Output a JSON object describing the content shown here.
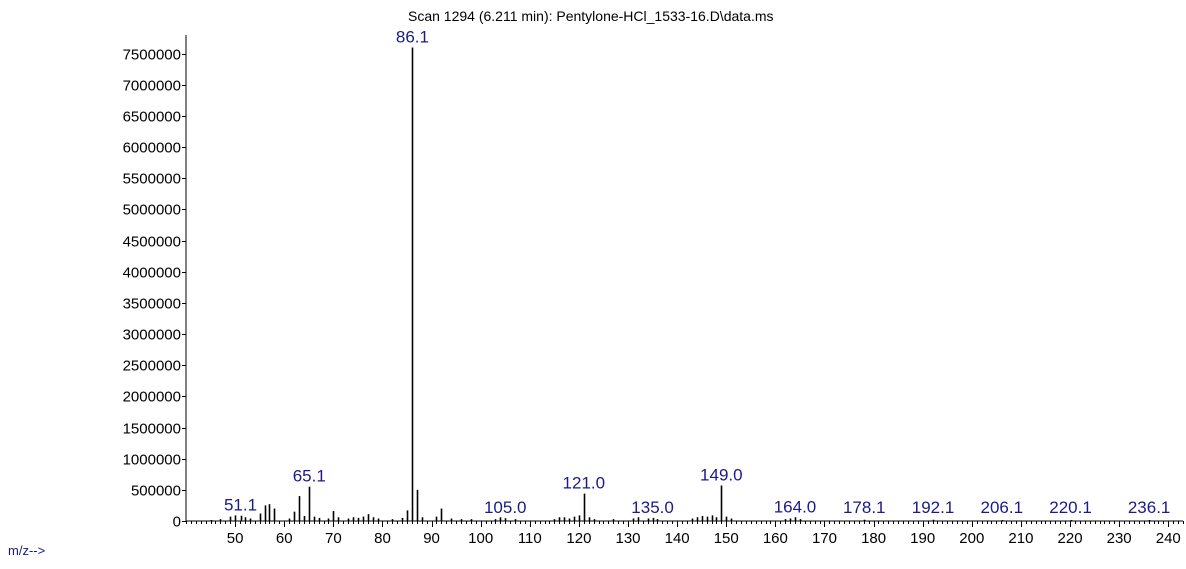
{
  "chart_data": {
    "type": "bar",
    "title": "Scan 1294 (6.211 min): Pentylone-HCl_1533-16.D\\data.ms",
    "xlabel": "m/z-->",
    "ylabel": "",
    "xlim": [
      40,
      243
    ],
    "ylim": [
      0,
      7800000
    ],
    "x_ticks": [
      50,
      60,
      70,
      80,
      90,
      100,
      110,
      120,
      130,
      140,
      150,
      160,
      170,
      180,
      190,
      200,
      210,
      220,
      230,
      240
    ],
    "y_ticks": [
      0,
      500000,
      1000000,
      1500000,
      2000000,
      2500000,
      3000000,
      3500000,
      4000000,
      4500000,
      5000000,
      5500000,
      6000000,
      6500000,
      7000000,
      7500000
    ],
    "grid": false,
    "bar_color": "#000000",
    "label_color": "#1a1a8a",
    "series": [
      {
        "x": [
          45,
          47,
          49,
          50,
          51.1,
          52,
          53,
          55,
          56,
          57,
          58,
          61,
          62,
          63,
          64,
          65.1,
          66,
          67,
          69,
          70,
          71,
          73,
          74,
          75,
          76,
          77,
          78,
          79,
          82,
          84,
          85,
          86.1,
          87,
          88,
          91,
          92,
          94,
          96,
          98,
          103,
          104,
          105.0,
          107,
          115,
          116,
          117,
          118,
          119,
          120,
          121.0,
          122,
          123,
          127,
          131,
          132,
          134,
          135.0,
          136,
          143,
          144,
          145,
          146,
          147,
          148,
          149.0,
          150,
          151,
          162,
          163,
          164.0,
          165,
          178.1,
          192.1,
          206.1,
          220.1,
          236.1
        ],
        "values": [
          10000,
          30000,
          70000,
          90000,
          85000,
          60000,
          40000,
          120000,
          250000,
          270000,
          200000,
          40000,
          150000,
          400000,
          80000,
          550000,
          70000,
          50000,
          40000,
          160000,
          60000,
          40000,
          60000,
          50000,
          70000,
          110000,
          60000,
          40000,
          30000,
          50000,
          170000,
          7600000,
          500000,
          60000,
          70000,
          200000,
          40000,
          30000,
          30000,
          30000,
          60000,
          45000,
          30000,
          30000,
          60000,
          60000,
          40000,
          70000,
          90000,
          440000,
          60000,
          30000,
          30000,
          40000,
          60000,
          40000,
          50000,
          30000,
          40000,
          60000,
          80000,
          70000,
          90000,
          60000,
          570000,
          70000,
          40000,
          30000,
          40000,
          60000,
          30000,
          20000,
          20000,
          10000,
          10000,
          10000
        ]
      }
    ],
    "annotations": [
      {
        "x": 51.1,
        "text": "51.1"
      },
      {
        "x": 65.1,
        "text": "65.1"
      },
      {
        "x": 86.1,
        "text": "86.1"
      },
      {
        "x": 105.0,
        "text": "105.0"
      },
      {
        "x": 121.0,
        "text": "121.0"
      },
      {
        "x": 135.0,
        "text": "135.0"
      },
      {
        "x": 149.0,
        "text": "149.0"
      },
      {
        "x": 164.0,
        "text": "164.0"
      },
      {
        "x": 178.1,
        "text": "178.1"
      },
      {
        "x": 192.1,
        "text": "192.1"
      },
      {
        "x": 206.1,
        "text": "206.1"
      },
      {
        "x": 220.1,
        "text": "220.1"
      },
      {
        "x": 236.1,
        "text": "236.1"
      }
    ]
  }
}
